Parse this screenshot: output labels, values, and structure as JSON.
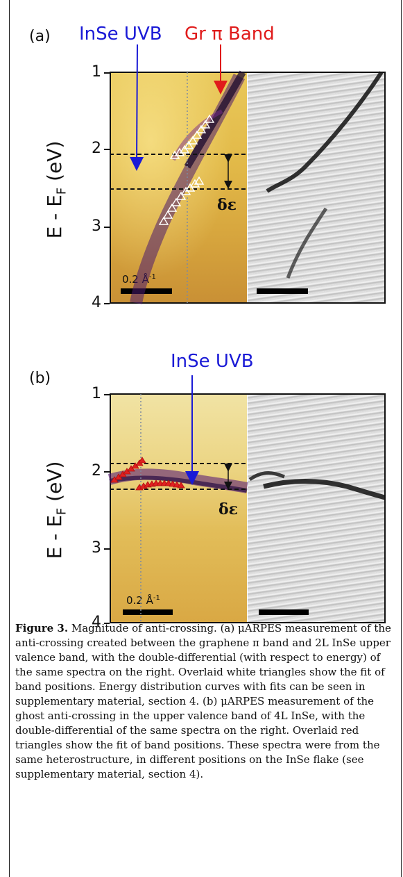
{
  "panel_a": {
    "letter": "(a)",
    "label_uvb": "InSe UVB",
    "label_gr": "Gr π Band",
    "ylabel_main": "E - E",
    "ylabel_sub": "F",
    "ylabel_unit": " (eV)",
    "yticks": [
      "1",
      "2",
      "3",
      "4"
    ],
    "scalebar_label": "0.2 Å",
    "scalebar_exp": "-1",
    "gap_label": "δε"
  },
  "panel_b": {
    "letter": "(b)",
    "label_uvb": "InSe UVB",
    "ylabel_main": "E - E",
    "ylabel_sub": "F",
    "ylabel_unit": " (eV)",
    "yticks": [
      "1",
      "2",
      "3",
      "4"
    ],
    "scalebar_label": "0.2 Å",
    "scalebar_exp": "-1",
    "gap_label": "δε"
  },
  "caption": {
    "heading": "Figure 3.",
    "text": " Magnitude of anti-crossing. (a) μARPES measurement of the anti-crossing created between the graphene π band and 2L InSe upper valence band, with the double-differential (with respect to energy) of the same spectra on the right. Overlaid white triangles show the fit of band positions. Energy distribution curves with fits can be seen in supplementary material, section 4. (b) μARPES measurement of the ghost anti-crossing in the upper valence band of 4L InSe, with the double-differential of the same spectra on the right. Overlaid red triangles show the fit of band positions. These spectra were from the same heterostructure, in different positions on the InSe flake (see supplementary material, section 4)."
  },
  "colors": {
    "annotation_blue": "#1a1ad6",
    "annotation_red": "#e01b1b",
    "fit_triangles_b": "#e02020"
  }
}
